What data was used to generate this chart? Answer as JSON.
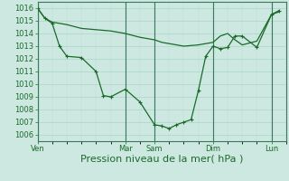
{
  "background_color": "#cce8e0",
  "grid_color_major": "#aad4cc",
  "grid_color_minor": "#c0ddd8",
  "line_color": "#1a6b2a",
  "xlabel": "Pression niveau de la mer( hPa )",
  "xlabel_fontsize": 8,
  "ylim": [
    1005.5,
    1016.5
  ],
  "yticks": [
    1006,
    1007,
    1008,
    1009,
    1010,
    1011,
    1012,
    1013,
    1014,
    1015,
    1016
  ],
  "xtick_labels": [
    "Ven",
    "Mar",
    "Sam",
    "Dim",
    "Lun"
  ],
  "xtick_positions": [
    0,
    48,
    64,
    96,
    128
  ],
  "xlim": [
    0,
    136
  ],
  "vline_positions": [
    0,
    48,
    64,
    96,
    128
  ],
  "line1_x": [
    0,
    4,
    8,
    16,
    24,
    32,
    40,
    48,
    56,
    64,
    68,
    72,
    76,
    80,
    88,
    96,
    100,
    104,
    108,
    112,
    120,
    128,
    132
  ],
  "line1_y": [
    1016.0,
    1015.2,
    1014.9,
    1014.7,
    1014.4,
    1014.3,
    1014.2,
    1014.0,
    1013.7,
    1013.5,
    1013.3,
    1013.2,
    1013.1,
    1013.0,
    1013.1,
    1013.3,
    1013.8,
    1014.0,
    1013.5,
    1013.1,
    1013.4,
    1015.5,
    1015.7
  ],
  "line2_x": [
    0,
    4,
    8,
    12,
    16,
    24,
    32,
    36,
    40,
    48,
    56,
    64,
    68,
    72,
    76,
    80,
    84,
    88,
    92,
    96,
    100,
    104,
    108,
    112,
    120,
    128,
    132
  ],
  "line2_y": [
    1016.0,
    1015.2,
    1014.8,
    1013.0,
    1012.2,
    1012.1,
    1011.0,
    1009.1,
    1009.0,
    1009.6,
    1008.6,
    1006.8,
    1006.7,
    1006.5,
    1006.8,
    1007.0,
    1007.2,
    1009.5,
    1012.2,
    1013.0,
    1012.8,
    1012.9,
    1013.8,
    1013.8,
    1012.9,
    1015.5,
    1015.8
  ]
}
